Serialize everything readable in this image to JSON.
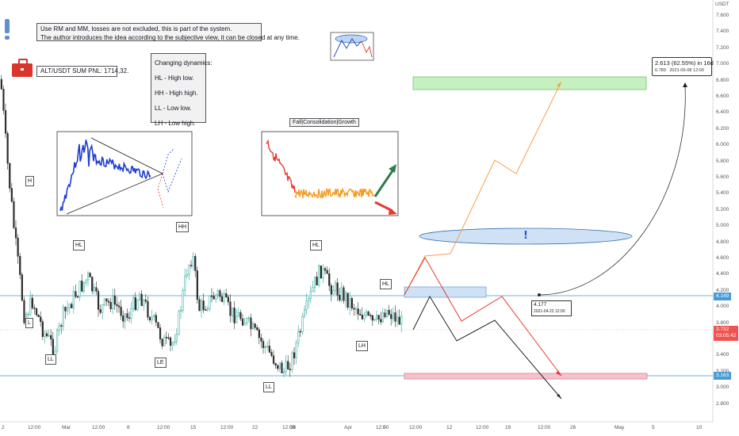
{
  "symbol_unit": "USDT",
  "notes": {
    "line1": "Use RM and MM, losses are not excluded, this is part of the system.",
    "line2": "The author introduces the idea according to the subjective view, it can be closed at any time."
  },
  "pnl": {
    "label": "ALT/USDT SUM PNL: 1714,32."
  },
  "dynamics": {
    "title": "Changing dynamics:",
    "items": [
      "HL - High low.",
      "HH - High high.",
      "LL - Low low.",
      "LH - Low high."
    ]
  },
  "fall_box_title": "Fall|Consolidation|Growth",
  "wave_labels": {
    "h": "H",
    "l": "L",
    "ll1": "LL",
    "hl1": "HL",
    "le": "LE",
    "hh": "HH",
    "ll2": "LL",
    "hl2": "HL",
    "hl3": "HL",
    "lh": "LH"
  },
  "callouts": {
    "entry_price": "4.177",
    "entry_date": "2021-04-22  12:00",
    "target_line1": "2.613 (62.55%) in 16d",
    "target_line2_price": "6.789",
    "target_line2_date": "2021-05-08  12:00"
  },
  "y_axis": [
    "7.600",
    "7.400",
    "7.200",
    "7.000",
    "6.800",
    "6.600",
    "6.400",
    "6.200",
    "6.000",
    "5.800",
    "5.600",
    "5.400",
    "5.200",
    "5.000",
    "4.800",
    "4.600",
    "4.400",
    "4.200",
    "4.000",
    "3.800",
    "3.600",
    "3.400",
    "3.200",
    "3.000",
    "2.800"
  ],
  "price_tags": {
    "upper": "4.149",
    "current": "3.732",
    "countdown": "03:05:42",
    "lower": "3.163"
  },
  "x_axis": [
    {
      "label": "2"
    },
    {
      "label": "12:00"
    },
    {
      "label": "Mar"
    },
    {
      "label": "12:00"
    },
    {
      "label": "8"
    },
    {
      "label": "12:00"
    },
    {
      "label": "15"
    },
    {
      "label": "12:00"
    },
    {
      "label": "22"
    },
    {
      "label": "12:00"
    },
    {
      "label": "26"
    },
    {
      "label": "Apr"
    },
    {
      "label": "12:00"
    },
    {
      "label": "5"
    },
    {
      "label": "12:00"
    },
    {
      "label": "12"
    },
    {
      "label": "12:00"
    },
    {
      "label": "19"
    },
    {
      "label": "12:00"
    },
    {
      "label": "26"
    },
    {
      "label": "May"
    },
    {
      "label": "5"
    },
    {
      "label": "10"
    }
  ],
  "colors": {
    "bull": "#26a69a",
    "bear": "#ef5350",
    "candle_body_dark": "#2d2d2d",
    "green_zone": "#c7f0c0",
    "red_zone": "#f4c3cc",
    "blue_zone": "#cfe2f5",
    "orange_path": "#f6a04d",
    "red_path": "#e8392f",
    "black_path": "#222222",
    "hline": "#6fb3d9"
  }
}
